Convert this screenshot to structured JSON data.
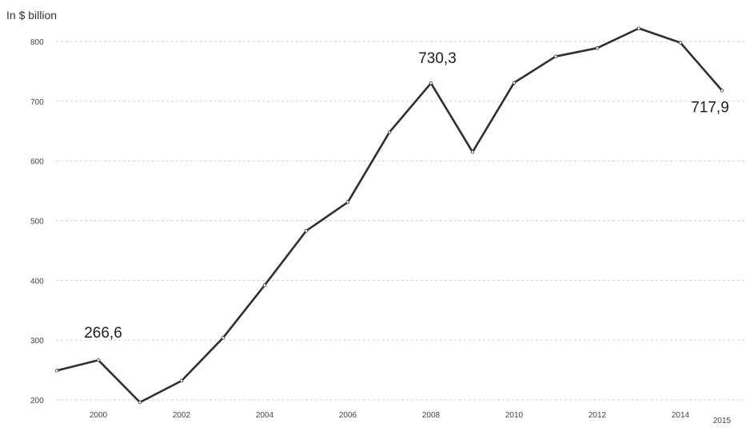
{
  "chart_data": {
    "type": "line",
    "title": "",
    "ylabel": "In $ billion",
    "xlabel": "",
    "x": [
      1999,
      2000,
      2001,
      2002,
      2003,
      2004,
      2005,
      2006,
      2007,
      2008,
      2009,
      2010,
      2011,
      2012,
      2013,
      2014,
      2015
    ],
    "series": [
      {
        "values": [
          249,
          266.6,
          196,
          232,
          304,
          392,
          483,
          531,
          648,
          730.3,
          615,
          731,
          775,
          789,
          822,
          798,
          717.9
        ]
      }
    ],
    "xticks": [
      "2000",
      "2002",
      "2004",
      "2006",
      "2008",
      "2010",
      "2012",
      "2014",
      "2015"
    ],
    "yticks": [
      "200",
      "300",
      "400",
      "500",
      "600",
      "700",
      "800"
    ],
    "ylim": [
      200,
      800
    ],
    "grid": true,
    "annotations": [
      {
        "x": 2000,
        "y": 266.6,
        "text": "266,6"
      },
      {
        "x": 2008,
        "y": 730.3,
        "text": "730,3"
      },
      {
        "x": 2015,
        "y": 717.9,
        "text": "717,9"
      }
    ],
    "colors": {
      "line": "#2b2f36",
      "grid": "#cfcfcf"
    }
  }
}
